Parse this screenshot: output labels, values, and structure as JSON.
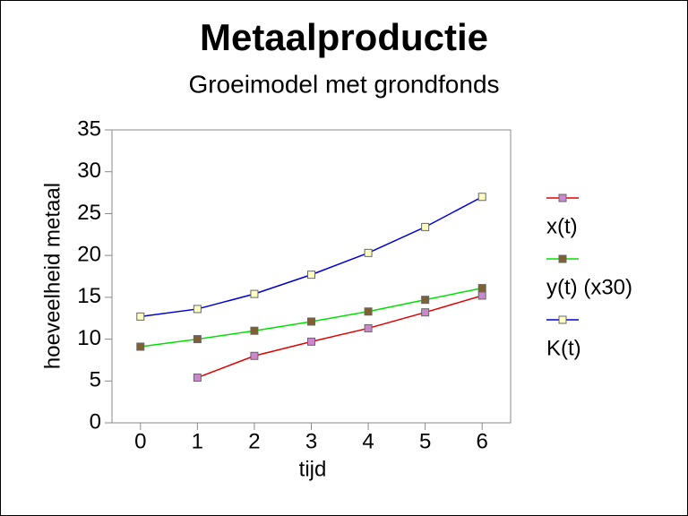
{
  "chart_data": {
    "type": "line",
    "title": "Metaalproductie",
    "subtitle": "Groeimodel met grondfonds",
    "x_label": "tijd",
    "y_label": "hoeveelheid metaal",
    "x": [
      0,
      1,
      2,
      3,
      4,
      5,
      6
    ],
    "series": [
      {
        "name": "x(t)",
        "color": "#e00000",
        "marker_color": "#cc88cc",
        "values": [
          null,
          5.4,
          8.0,
          9.7,
          11.3,
          13.2,
          15.2
        ]
      },
      {
        "name": "y(t) (x30)",
        "color": "#00e000",
        "marker_color": "#806030",
        "values": [
          9.1,
          10.0,
          11.0,
          12.1,
          13.3,
          14.7,
          16.1
        ]
      },
      {
        "name": "K(t)",
        "color": "#0000d0",
        "marker_color": "#ffffc0",
        "values": [
          12.7,
          13.6,
          15.4,
          17.7,
          20.3,
          23.4,
          27.0
        ]
      }
    ],
    "xlim": [
      -0.5,
      6.5
    ],
    "xticks": [
      0,
      1,
      2,
      3,
      4,
      5,
      6
    ],
    "ylim": [
      0,
      35
    ],
    "yticks": [
      0,
      5,
      10,
      15,
      20,
      25,
      30,
      35
    ],
    "grid": false,
    "legend": "right"
  }
}
